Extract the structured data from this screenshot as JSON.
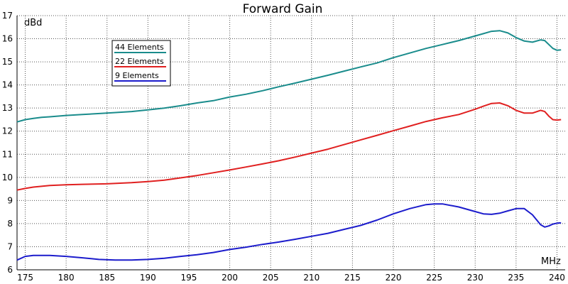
{
  "chart_data": {
    "type": "line",
    "title": "Forward Gain",
    "xlabel": "MHz",
    "ylabel": "dBd",
    "xlim": [
      174,
      241
    ],
    "ylim": [
      6,
      17
    ],
    "xticks": [
      175,
      180,
      185,
      190,
      195,
      200,
      205,
      210,
      215,
      220,
      225,
      230,
      235,
      240
    ],
    "yticks": [
      6,
      7,
      8,
      9,
      10,
      11,
      12,
      13,
      14,
      15,
      16,
      17
    ],
    "grid": true,
    "grid_style": "dotted",
    "legend_position": "top-left",
    "series": [
      {
        "name": "44 Elements",
        "color": "#1a8c8c",
        "points": [
          [
            174,
            12.4
          ],
          [
            175,
            12.5
          ],
          [
            176,
            12.55
          ],
          [
            177,
            12.6
          ],
          [
            178,
            12.62
          ],
          [
            180,
            12.68
          ],
          [
            182,
            12.72
          ],
          [
            185,
            12.78
          ],
          [
            188,
            12.85
          ],
          [
            190,
            12.92
          ],
          [
            192,
            13.0
          ],
          [
            194,
            13.1
          ],
          [
            196,
            13.22
          ],
          [
            198,
            13.32
          ],
          [
            200,
            13.48
          ],
          [
            202,
            13.6
          ],
          [
            204,
            13.75
          ],
          [
            206,
            13.92
          ],
          [
            208,
            14.08
          ],
          [
            210,
            14.25
          ],
          [
            212,
            14.42
          ],
          [
            214,
            14.6
          ],
          [
            216,
            14.78
          ],
          [
            218,
            14.95
          ],
          [
            220,
            15.18
          ],
          [
            222,
            15.38
          ],
          [
            224,
            15.58
          ],
          [
            226,
            15.75
          ],
          [
            228,
            15.92
          ],
          [
            230,
            16.12
          ],
          [
            231,
            16.22
          ],
          [
            232,
            16.32
          ],
          [
            233,
            16.35
          ],
          [
            234,
            16.25
          ],
          [
            235,
            16.05
          ],
          [
            236,
            15.9
          ],
          [
            237,
            15.85
          ],
          [
            238,
            15.95
          ],
          [
            238.5,
            15.92
          ],
          [
            239,
            15.75
          ],
          [
            239.5,
            15.58
          ],
          [
            240,
            15.5
          ],
          [
            240.5,
            15.52
          ]
        ]
      },
      {
        "name": "22 Elements",
        "color": "#e02020",
        "points": [
          [
            174,
            9.45
          ],
          [
            175,
            9.52
          ],
          [
            176,
            9.58
          ],
          [
            178,
            9.65
          ],
          [
            180,
            9.68
          ],
          [
            182,
            9.7
          ],
          [
            185,
            9.72
          ],
          [
            188,
            9.77
          ],
          [
            190,
            9.82
          ],
          [
            192,
            9.88
          ],
          [
            194,
            9.98
          ],
          [
            196,
            10.08
          ],
          [
            198,
            10.2
          ],
          [
            200,
            10.32
          ],
          [
            202,
            10.45
          ],
          [
            204,
            10.58
          ],
          [
            206,
            10.72
          ],
          [
            208,
            10.88
          ],
          [
            210,
            11.05
          ],
          [
            212,
            11.22
          ],
          [
            214,
            11.42
          ],
          [
            216,
            11.62
          ],
          [
            218,
            11.82
          ],
          [
            220,
            12.02
          ],
          [
            222,
            12.22
          ],
          [
            224,
            12.42
          ],
          [
            226,
            12.58
          ],
          [
            228,
            12.72
          ],
          [
            230,
            12.95
          ],
          [
            231,
            13.08
          ],
          [
            232,
            13.2
          ],
          [
            233,
            13.22
          ],
          [
            234,
            13.1
          ],
          [
            235,
            12.9
          ],
          [
            236,
            12.78
          ],
          [
            237,
            12.78
          ],
          [
            238,
            12.9
          ],
          [
            238.5,
            12.85
          ],
          [
            239,
            12.65
          ],
          [
            239.5,
            12.5
          ],
          [
            240,
            12.48
          ],
          [
            240.5,
            12.5
          ]
        ]
      },
      {
        "name": "9 Elements",
        "color": "#1c1ccc",
        "points": [
          [
            174,
            6.42
          ],
          [
            175,
            6.58
          ],
          [
            176,
            6.62
          ],
          [
            178,
            6.62
          ],
          [
            180,
            6.58
          ],
          [
            182,
            6.52
          ],
          [
            184,
            6.45
          ],
          [
            186,
            6.42
          ],
          [
            188,
            6.42
          ],
          [
            190,
            6.45
          ],
          [
            192,
            6.5
          ],
          [
            194,
            6.58
          ],
          [
            196,
            6.65
          ],
          [
            198,
            6.75
          ],
          [
            200,
            6.88
          ],
          [
            202,
            6.98
          ],
          [
            204,
            7.1
          ],
          [
            206,
            7.2
          ],
          [
            208,
            7.32
          ],
          [
            210,
            7.45
          ],
          [
            212,
            7.58
          ],
          [
            214,
            7.75
          ],
          [
            216,
            7.92
          ],
          [
            218,
            8.15
          ],
          [
            220,
            8.42
          ],
          [
            222,
            8.65
          ],
          [
            224,
            8.82
          ],
          [
            225,
            8.85
          ],
          [
            226,
            8.85
          ],
          [
            228,
            8.72
          ],
          [
            230,
            8.52
          ],
          [
            231,
            8.42
          ],
          [
            232,
            8.4
          ],
          [
            233,
            8.45
          ],
          [
            234,
            8.55
          ],
          [
            235,
            8.65
          ],
          [
            236,
            8.65
          ],
          [
            237,
            8.38
          ],
          [
            238,
            7.95
          ],
          [
            238.5,
            7.85
          ],
          [
            239,
            7.9
          ],
          [
            239.5,
            7.98
          ],
          [
            240,
            8.02
          ],
          [
            240.5,
            8.03
          ]
        ]
      }
    ]
  }
}
